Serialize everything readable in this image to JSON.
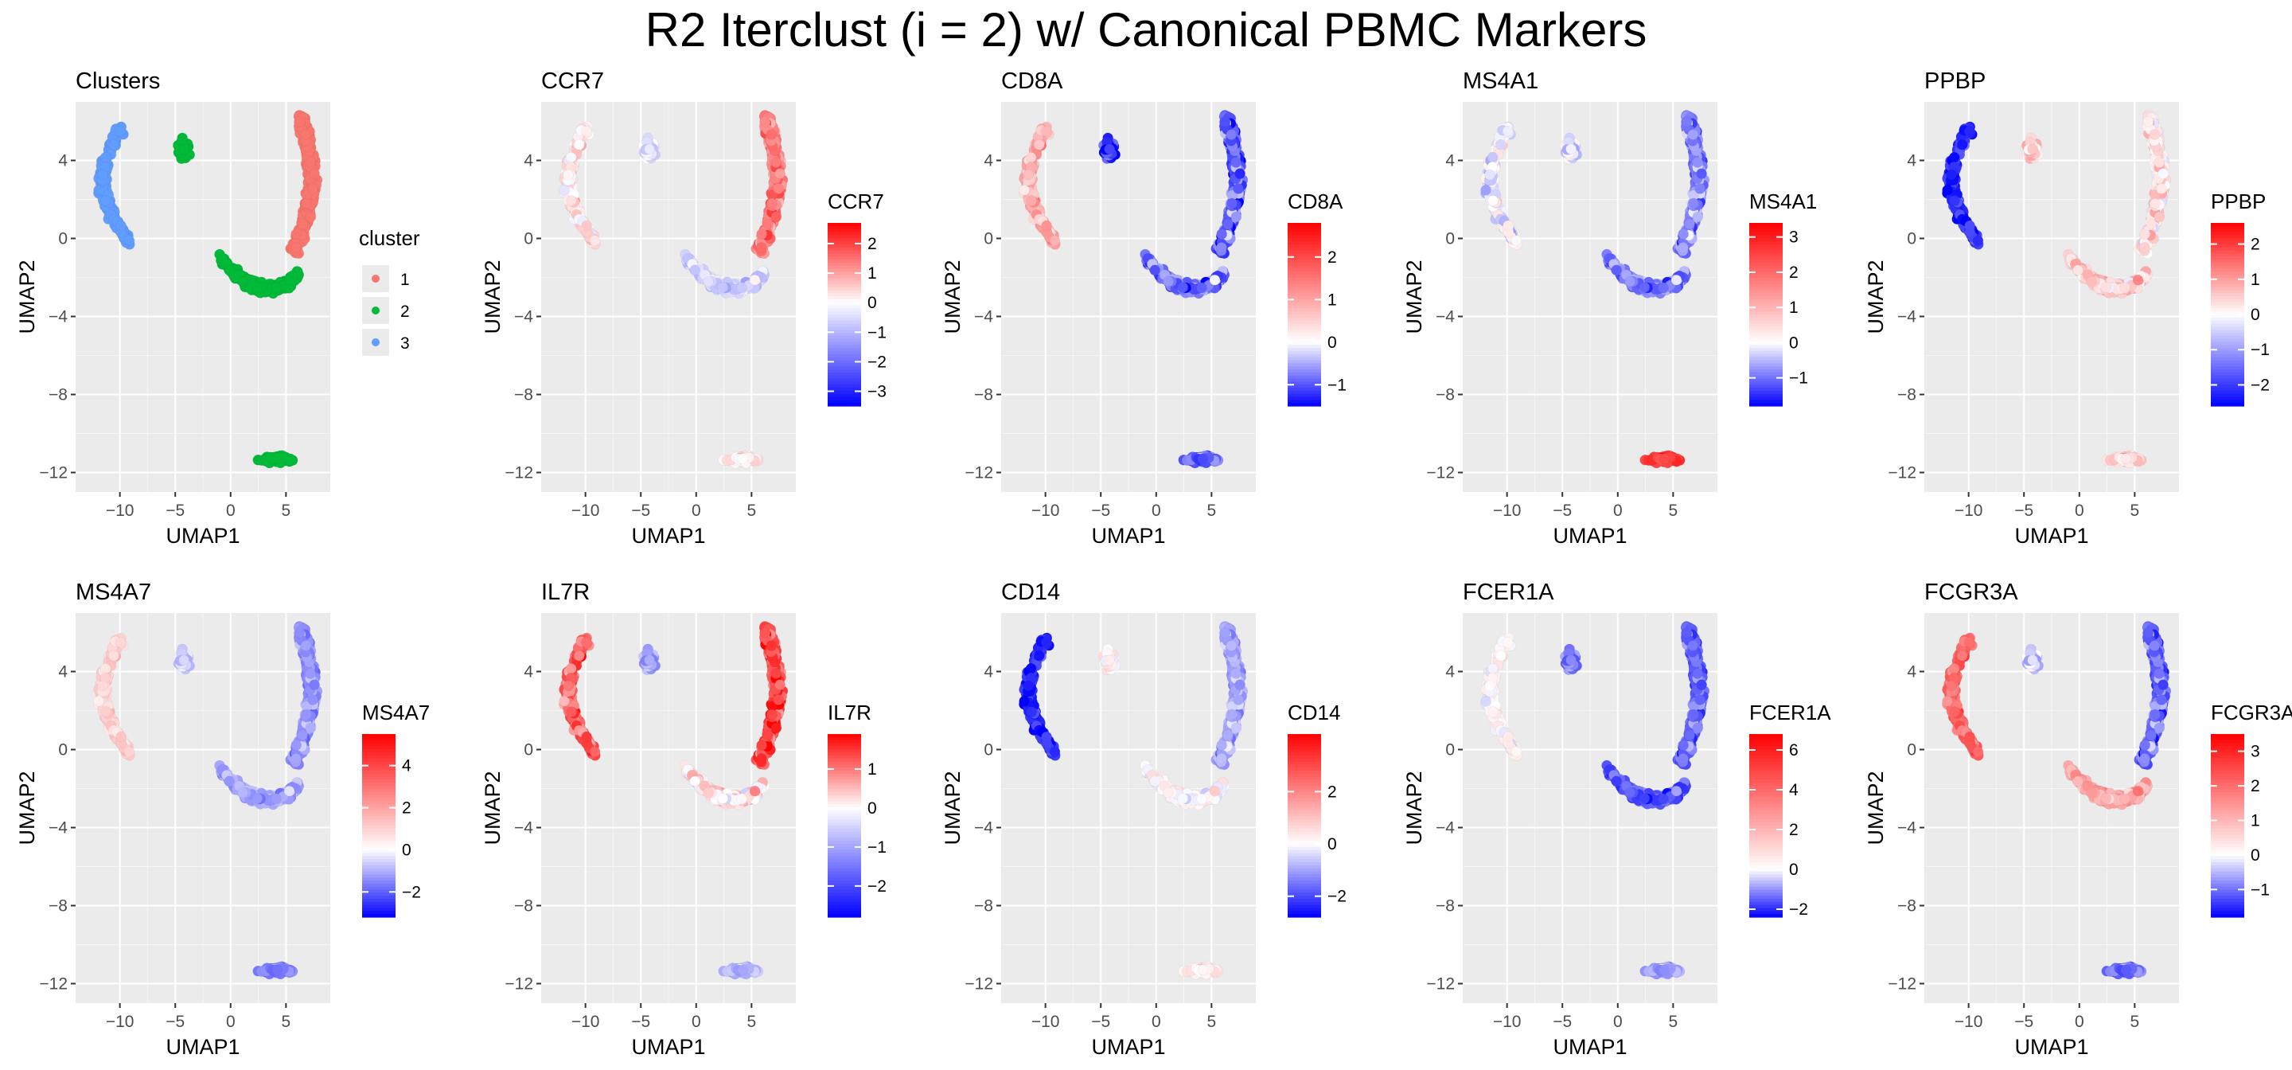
{
  "title": "R2 Iterclust (i = 2) w/ Canonical PBMC Markers",
  "colors": {
    "panel_bg": "#ebebeb",
    "grid": "#ffffff",
    "low": "#0000ff",
    "mid": "#ffffff",
    "high": "#ff0000",
    "cluster_1": "#f8766d",
    "cluster_2": "#00ba38",
    "cluster_3": "#619cff"
  },
  "chart_data": [
    {
      "type": "scatter",
      "title": "Clusters",
      "xlabel": "UMAP1",
      "ylabel": "UMAP2",
      "xlim": [
        -14,
        9
      ],
      "ylim": [
        -13,
        7
      ],
      "xticks": [
        -10,
        -5,
        0,
        5
      ],
      "yticks": [
        4,
        0,
        -4,
        -8,
        -12
      ],
      "grid": true,
      "legend_position": "right",
      "legend": {
        "title": "cluster",
        "entries": [
          "1",
          "2",
          "3"
        ]
      },
      "clusters": {
        "island_far_left": 3,
        "island_top": 2,
        "arc_upper": 1,
        "arc_lower": 2,
        "island_bottom": 2
      }
    },
    {
      "type": "scatter",
      "title": "CCR7",
      "xlabel": "UMAP1",
      "ylabel": "UMAP2",
      "xlim": [
        -14,
        9
      ],
      "ylim": [
        -13,
        7
      ],
      "xticks": [
        -10,
        -5,
        0,
        5
      ],
      "yticks": [
        4,
        0,
        -4,
        -8,
        -12
      ],
      "grid": true,
      "colorbar": {
        "title": "CCR7",
        "min": -3.5,
        "max": 2.7,
        "ticks": [
          2,
          1,
          0,
          -1,
          -2,
          -3
        ]
      },
      "levels": {
        "island_far_left": 0.3,
        "island_top": -0.4,
        "arc_upper": 1.4,
        "arc_lower": -0.6,
        "island_bottom": 0.2
      }
    },
    {
      "type": "scatter",
      "title": "CD8A",
      "xlabel": "UMAP1",
      "ylabel": "UMAP2",
      "xlim": [
        -14,
        9
      ],
      "ylim": [
        -13,
        7
      ],
      "xticks": [
        -10,
        -5,
        0,
        5
      ],
      "yticks": [
        4,
        0,
        -4,
        -8,
        -12
      ],
      "grid": true,
      "colorbar": {
        "title": "CD8A",
        "min": -1.5,
        "max": 2.8,
        "ticks": [
          2,
          1,
          0,
          -1
        ]
      },
      "levels": {
        "island_far_left": 0.9,
        "island_top": -1.2,
        "arc_upper": -0.9,
        "arc_lower": -0.8,
        "island_bottom": -0.9
      }
    },
    {
      "type": "scatter",
      "title": "MS4A1",
      "xlabel": "UMAP1",
      "ylabel": "UMAP2",
      "xlim": [
        -14,
        9
      ],
      "ylim": [
        -13,
        7
      ],
      "xticks": [
        -10,
        -5,
        0,
        5
      ],
      "yticks": [
        4,
        0,
        -4,
        -8,
        -12
      ],
      "grid": true,
      "colorbar": {
        "title": "MS4A1",
        "min": -1.8,
        "max": 3.4,
        "ticks": [
          3,
          2,
          1,
          0,
          -1
        ]
      },
      "levels": {
        "island_far_left": 0.0,
        "island_top": -0.2,
        "arc_upper": -0.8,
        "arc_lower": -0.9,
        "island_bottom": 2.6
      }
    },
    {
      "type": "scatter",
      "title": "PPBP",
      "xlabel": "UMAP1",
      "ylabel": "UMAP2",
      "xlim": [
        -14,
        9
      ],
      "ylim": [
        -13,
        7
      ],
      "xticks": [
        -10,
        -5,
        0,
        5
      ],
      "yticks": [
        4,
        0,
        -4,
        -8,
        -12
      ],
      "grid": true,
      "colorbar": {
        "title": "PPBP",
        "min": -2.6,
        "max": 2.6,
        "ticks": [
          2,
          1,
          0,
          -1,
          -2
        ]
      },
      "levels": {
        "island_far_left": -2.1,
        "island_top": 0.5,
        "arc_upper": 0.3,
        "arc_lower": 0.5,
        "island_bottom": 0.4
      }
    },
    {
      "type": "scatter",
      "title": "MS4A7",
      "xlabel": "UMAP1",
      "ylabel": "UMAP2",
      "xlim": [
        -14,
        9
      ],
      "ylim": [
        -13,
        7
      ],
      "xticks": [
        -10,
        -5,
        0,
        5
      ],
      "yticks": [
        4,
        0,
        -4,
        -8,
        -12
      ],
      "grid": true,
      "colorbar": {
        "title": "MS4A7",
        "min": -3.2,
        "max": 5.5,
        "ticks": [
          4,
          2,
          0,
          -2
        ]
      },
      "levels": {
        "island_far_left": 1.0,
        "island_top": -0.6,
        "arc_upper": -1.3,
        "arc_lower": -1.1,
        "island_bottom": -1.6
      }
    },
    {
      "type": "scatter",
      "title": "IL7R",
      "xlabel": "UMAP1",
      "ylabel": "UMAP2",
      "xlim": [
        -14,
        9
      ],
      "ylim": [
        -13,
        7
      ],
      "xticks": [
        -10,
        -5,
        0,
        5
      ],
      "yticks": [
        4,
        0,
        -4,
        -8,
        -12
      ],
      "grid": true,
      "colorbar": {
        "title": "IL7R",
        "min": -2.8,
        "max": 1.9,
        "ticks": [
          1,
          0,
          -1,
          -2
        ]
      },
      "levels": {
        "island_far_left": 1.2,
        "island_top": -1.0,
        "arc_upper": 1.4,
        "arc_lower": 0.2,
        "island_bottom": -0.8
      }
    },
    {
      "type": "scatter",
      "title": "CD14",
      "xlabel": "UMAP1",
      "ylabel": "UMAP2",
      "xlim": [
        -14,
        9
      ],
      "ylim": [
        -13,
        7
      ],
      "xticks": [
        -10,
        -5,
        0,
        5
      ],
      "yticks": [
        4,
        0,
        -4,
        -8,
        -12
      ],
      "grid": true,
      "colorbar": {
        "title": "CD14",
        "min": -2.8,
        "max": 4.2,
        "ticks": [
          2,
          0,
          -2
        ]
      },
      "levels": {
        "island_far_left": -2.3,
        "island_top": 0.2,
        "arc_upper": -0.9,
        "arc_lower": 0.1,
        "island_bottom": 0.3
      }
    },
    {
      "type": "scatter",
      "title": "FCER1A",
      "xlabel": "UMAP1",
      "ylabel": "UMAP2",
      "xlim": [
        -14,
        9
      ],
      "ylim": [
        -13,
        7
      ],
      "xticks": [
        -10,
        -5,
        0,
        5
      ],
      "yticks": [
        4,
        0,
        -4,
        -8,
        -12
      ],
      "grid": true,
      "colorbar": {
        "title": "FCER1A",
        "min": -2.4,
        "max": 6.8,
        "ticks": [
          6,
          4,
          2,
          0,
          -2
        ]
      },
      "levels": {
        "island_far_left": 0.3,
        "island_top": -1.2,
        "arc_upper": -1.4,
        "arc_lower": -1.6,
        "island_bottom": -0.9
      }
    },
    {
      "type": "scatter",
      "title": "FCGR3A",
      "xlabel": "UMAP1",
      "ylabel": "UMAP2",
      "xlim": [
        -14,
        9
      ],
      "ylim": [
        -13,
        7
      ],
      "xticks": [
        -10,
        -5,
        0,
        5
      ],
      "yticks": [
        4,
        0,
        -4,
        -8,
        -12
      ],
      "grid": true,
      "colorbar": {
        "title": "FCGR3A",
        "min": -1.8,
        "max": 3.5,
        "ticks": [
          3,
          2,
          1,
          0,
          -1
        ]
      },
      "levels": {
        "island_far_left": 2.1,
        "island_top": -0.3,
        "arc_upper": -1.0,
        "arc_lower": 1.2,
        "island_bottom": -1.0
      }
    }
  ]
}
